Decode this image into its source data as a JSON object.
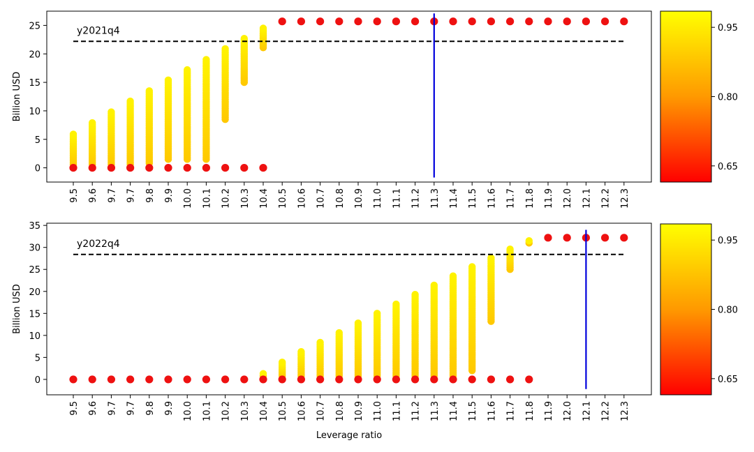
{
  "chart_data": [
    {
      "type": "scatter",
      "panel": "top",
      "xlabel": "",
      "ylabel": "Billion USD",
      "categories": [
        "9.5",
        "9.6",
        "9.7",
        "9.7",
        "9.8",
        "9.9",
        "10.0",
        "10.1",
        "10.2",
        "10.3",
        "10.4",
        "10.5",
        "10.6",
        "10.7",
        "10.8",
        "10.9",
        "11.0",
        "11.1",
        "11.2",
        "11.3",
        "11.4",
        "11.5",
        "11.6",
        "11.7",
        "11.8",
        "11.9",
        "12.0",
        "12.1",
        "12.2",
        "12.3"
      ],
      "yticks": [
        "0",
        "5",
        "10",
        "15",
        "20",
        "25"
      ],
      "ylim": [
        -2.5,
        27.5
      ],
      "annotation": "y2021q4",
      "reference_line_y": 22.2,
      "vertical_line_category_index": 19,
      "vertical_line_y_range": [
        -1.7,
        27.1
      ],
      "red_dots": [
        {
          "i": 0,
          "y": 0
        },
        {
          "i": 1,
          "y": 0
        },
        {
          "i": 2,
          "y": 0
        },
        {
          "i": 3,
          "y": 0
        },
        {
          "i": 4,
          "y": 0
        },
        {
          "i": 5,
          "y": 0
        },
        {
          "i": 6,
          "y": 0
        },
        {
          "i": 7,
          "y": 0
        },
        {
          "i": 8,
          "y": 0
        },
        {
          "i": 9,
          "y": 0
        },
        {
          "i": 10,
          "y": 0
        },
        {
          "i": 11,
          "y": 25.7
        },
        {
          "i": 12,
          "y": 25.7
        },
        {
          "i": 13,
          "y": 25.7
        },
        {
          "i": 14,
          "y": 25.7
        },
        {
          "i": 15,
          "y": 25.7
        },
        {
          "i": 16,
          "y": 25.7
        },
        {
          "i": 17,
          "y": 25.7
        },
        {
          "i": 18,
          "y": 25.7
        },
        {
          "i": 19,
          "y": 25.7
        },
        {
          "i": 20,
          "y": 25.7
        },
        {
          "i": 21,
          "y": 25.7
        },
        {
          "i": 22,
          "y": 25.7
        },
        {
          "i": 23,
          "y": 25.7
        },
        {
          "i": 24,
          "y": 25.7
        },
        {
          "i": 25,
          "y": 25.7
        },
        {
          "i": 26,
          "y": 25.7
        },
        {
          "i": 27,
          "y": 25.7
        },
        {
          "i": 28,
          "y": 25.7
        },
        {
          "i": 29,
          "y": 25.7
        }
      ],
      "yellow_columns": [
        {
          "i": 0,
          "ymin": 0.6,
          "ymax": 5.9
        },
        {
          "i": 1,
          "ymin": 0.6,
          "ymax": 7.9
        },
        {
          "i": 2,
          "ymin": 0.6,
          "ymax": 9.8
        },
        {
          "i": 3,
          "ymin": 0.6,
          "ymax": 11.7
        },
        {
          "i": 4,
          "ymin": 0.8,
          "ymax": 13.5
        },
        {
          "i": 5,
          "ymin": 1.5,
          "ymax": 15.4
        },
        {
          "i": 6,
          "ymin": 1.5,
          "ymax": 17.2
        },
        {
          "i": 7,
          "ymin": 1.5,
          "ymax": 19.0
        },
        {
          "i": 8,
          "ymin": 8.5,
          "ymax": 20.9
        },
        {
          "i": 9,
          "ymin": 15.0,
          "ymax": 22.7
        },
        {
          "i": 10,
          "ymin": 21.1,
          "ymax": 24.5
        }
      ]
    },
    {
      "type": "scatter",
      "panel": "bottom",
      "xlabel": "Leverage ratio",
      "ylabel": "Billion USD",
      "categories": [
        "9.5",
        "9.6",
        "9.7",
        "9.7",
        "9.8",
        "9.9",
        "10.0",
        "10.1",
        "10.2",
        "10.3",
        "10.4",
        "10.5",
        "10.6",
        "10.7",
        "10.8",
        "10.9",
        "11.0",
        "11.1",
        "11.2",
        "11.3",
        "11.4",
        "11.5",
        "11.6",
        "11.7",
        "11.8",
        "11.9",
        "12.0",
        "12.1",
        "12.2",
        "12.3"
      ],
      "yticks": [
        "0",
        "5",
        "10",
        "15",
        "20",
        "25",
        "30",
        "35"
      ],
      "ylim": [
        -3.5,
        35.5
      ],
      "annotation": "y2022q4",
      "reference_line_y": 28.4,
      "vertical_line_category_index": 27,
      "vertical_line_y_range": [
        -2.2,
        34.0
      ],
      "red_dots": [
        {
          "i": 0,
          "y": 0
        },
        {
          "i": 1,
          "y": 0
        },
        {
          "i": 2,
          "y": 0
        },
        {
          "i": 3,
          "y": 0
        },
        {
          "i": 4,
          "y": 0
        },
        {
          "i": 5,
          "y": 0
        },
        {
          "i": 6,
          "y": 0
        },
        {
          "i": 7,
          "y": 0
        },
        {
          "i": 8,
          "y": 0
        },
        {
          "i": 9,
          "y": 0
        },
        {
          "i": 10,
          "y": 0
        },
        {
          "i": 11,
          "y": 0
        },
        {
          "i": 12,
          "y": 0
        },
        {
          "i": 13,
          "y": 0
        },
        {
          "i": 14,
          "y": 0
        },
        {
          "i": 15,
          "y": 0
        },
        {
          "i": 16,
          "y": 0
        },
        {
          "i": 17,
          "y": 0
        },
        {
          "i": 18,
          "y": 0
        },
        {
          "i": 19,
          "y": 0
        },
        {
          "i": 20,
          "y": 0
        },
        {
          "i": 21,
          "y": 0
        },
        {
          "i": 22,
          "y": 0
        },
        {
          "i": 23,
          "y": 0
        },
        {
          "i": 24,
          "y": 0
        },
        {
          "i": 25,
          "y": 32.2
        },
        {
          "i": 26,
          "y": 32.2
        },
        {
          "i": 27,
          "y": 32.2
        },
        {
          "i": 28,
          "y": 32.2
        },
        {
          "i": 29,
          "y": 32.2
        }
      ],
      "yellow_columns": [
        {
          "i": 10,
          "ymin": 0.8,
          "ymax": 1.3
        },
        {
          "i": 11,
          "ymin": 0.8,
          "ymax": 3.9
        },
        {
          "i": 12,
          "ymin": 0.8,
          "ymax": 6.3
        },
        {
          "i": 13,
          "ymin": 0.8,
          "ymax": 8.4
        },
        {
          "i": 14,
          "ymin": 0.8,
          "ymax": 10.6
        },
        {
          "i": 15,
          "ymin": 0.8,
          "ymax": 12.8
        },
        {
          "i": 16,
          "ymin": 0.8,
          "ymax": 15.0
        },
        {
          "i": 17,
          "ymin": 0.8,
          "ymax": 17.1
        },
        {
          "i": 18,
          "ymin": 0.8,
          "ymax": 19.3
        },
        {
          "i": 19,
          "ymin": 0.8,
          "ymax": 21.4
        },
        {
          "i": 20,
          "ymin": 0.8,
          "ymax": 23.5
        },
        {
          "i": 21,
          "ymin": 2.0,
          "ymax": 25.6
        },
        {
          "i": 22,
          "ymin": 13.2,
          "ymax": 27.6
        },
        {
          "i": 23,
          "ymin": 25.0,
          "ymax": 29.6
        },
        {
          "i": 24,
          "ymin": 31.0,
          "ymax": 31.5
        }
      ]
    }
  ],
  "colorbar": {
    "ticks": [
      "0.95",
      "0.80",
      "0.65"
    ],
    "tick_values": [
      0.95,
      0.8,
      0.65
    ],
    "range": [
      0.615,
      0.985
    ],
    "color_low": "#ff0000",
    "color_high": "#ffff00"
  },
  "colors": {
    "red": "#ee1111",
    "ref_line": "#000000",
    "vline": "#0000dd"
  }
}
